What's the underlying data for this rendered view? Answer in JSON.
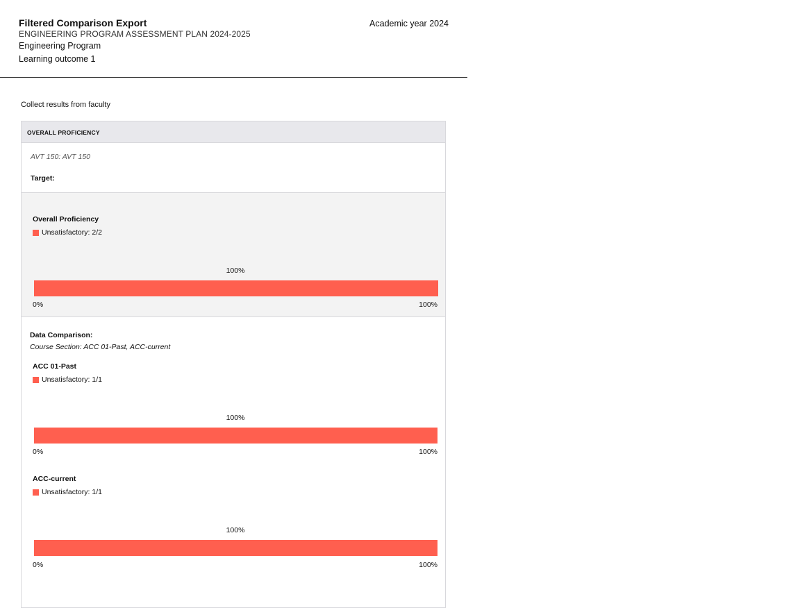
{
  "header": {
    "title": "Filtered Comparison Export",
    "plan": "ENGINEERING PROGRAM ASSESSMENT PLAN 2024-2025",
    "program": "Engineering Program",
    "outcome": "Learning outcome 1",
    "year": "Academic year 2024"
  },
  "collect_label": "Collect results from faculty",
  "card": {
    "heading": "OVERALL PROFICIENCY",
    "course": "AVT 150: AVT 150",
    "target_label": "Target:"
  },
  "overall": {
    "title": "Overall Proficiency",
    "legend": "Unsatisfactory: 2/2",
    "pct_label": "100%",
    "axis_min": "0%",
    "axis_max": "100%"
  },
  "comparison": {
    "title": "Data Comparison:",
    "subtitle": "Course Section: ACC 01-Past, ACC-current",
    "past": {
      "title": "ACC 01-Past",
      "legend": "Unsatisfactory: 1/1",
      "pct_label": "100%",
      "axis_min": "0%",
      "axis_max": "100%"
    },
    "current": {
      "title": "ACC-current",
      "legend": "Unsatisfactory: 1/1",
      "pct_label": "100%",
      "axis_min": "0%",
      "axis_max": "100%"
    }
  },
  "chart_data": [
    {
      "type": "bar",
      "categories": [
        "Unsatisfactory"
      ],
      "values": [
        100
      ],
      "xlim": [
        0,
        100
      ]
    },
    {
      "type": "bar",
      "categories": [
        "Unsatisfactory"
      ],
      "values": [
        100
      ],
      "xlim": [
        0,
        100
      ]
    },
    {
      "type": "bar",
      "categories": [
        "Unsatisfactory"
      ],
      "values": [
        100
      ],
      "xlim": [
        0,
        100
      ]
    }
  ],
  "colors": {
    "unsatisfactory": "#ff5f4f"
  }
}
